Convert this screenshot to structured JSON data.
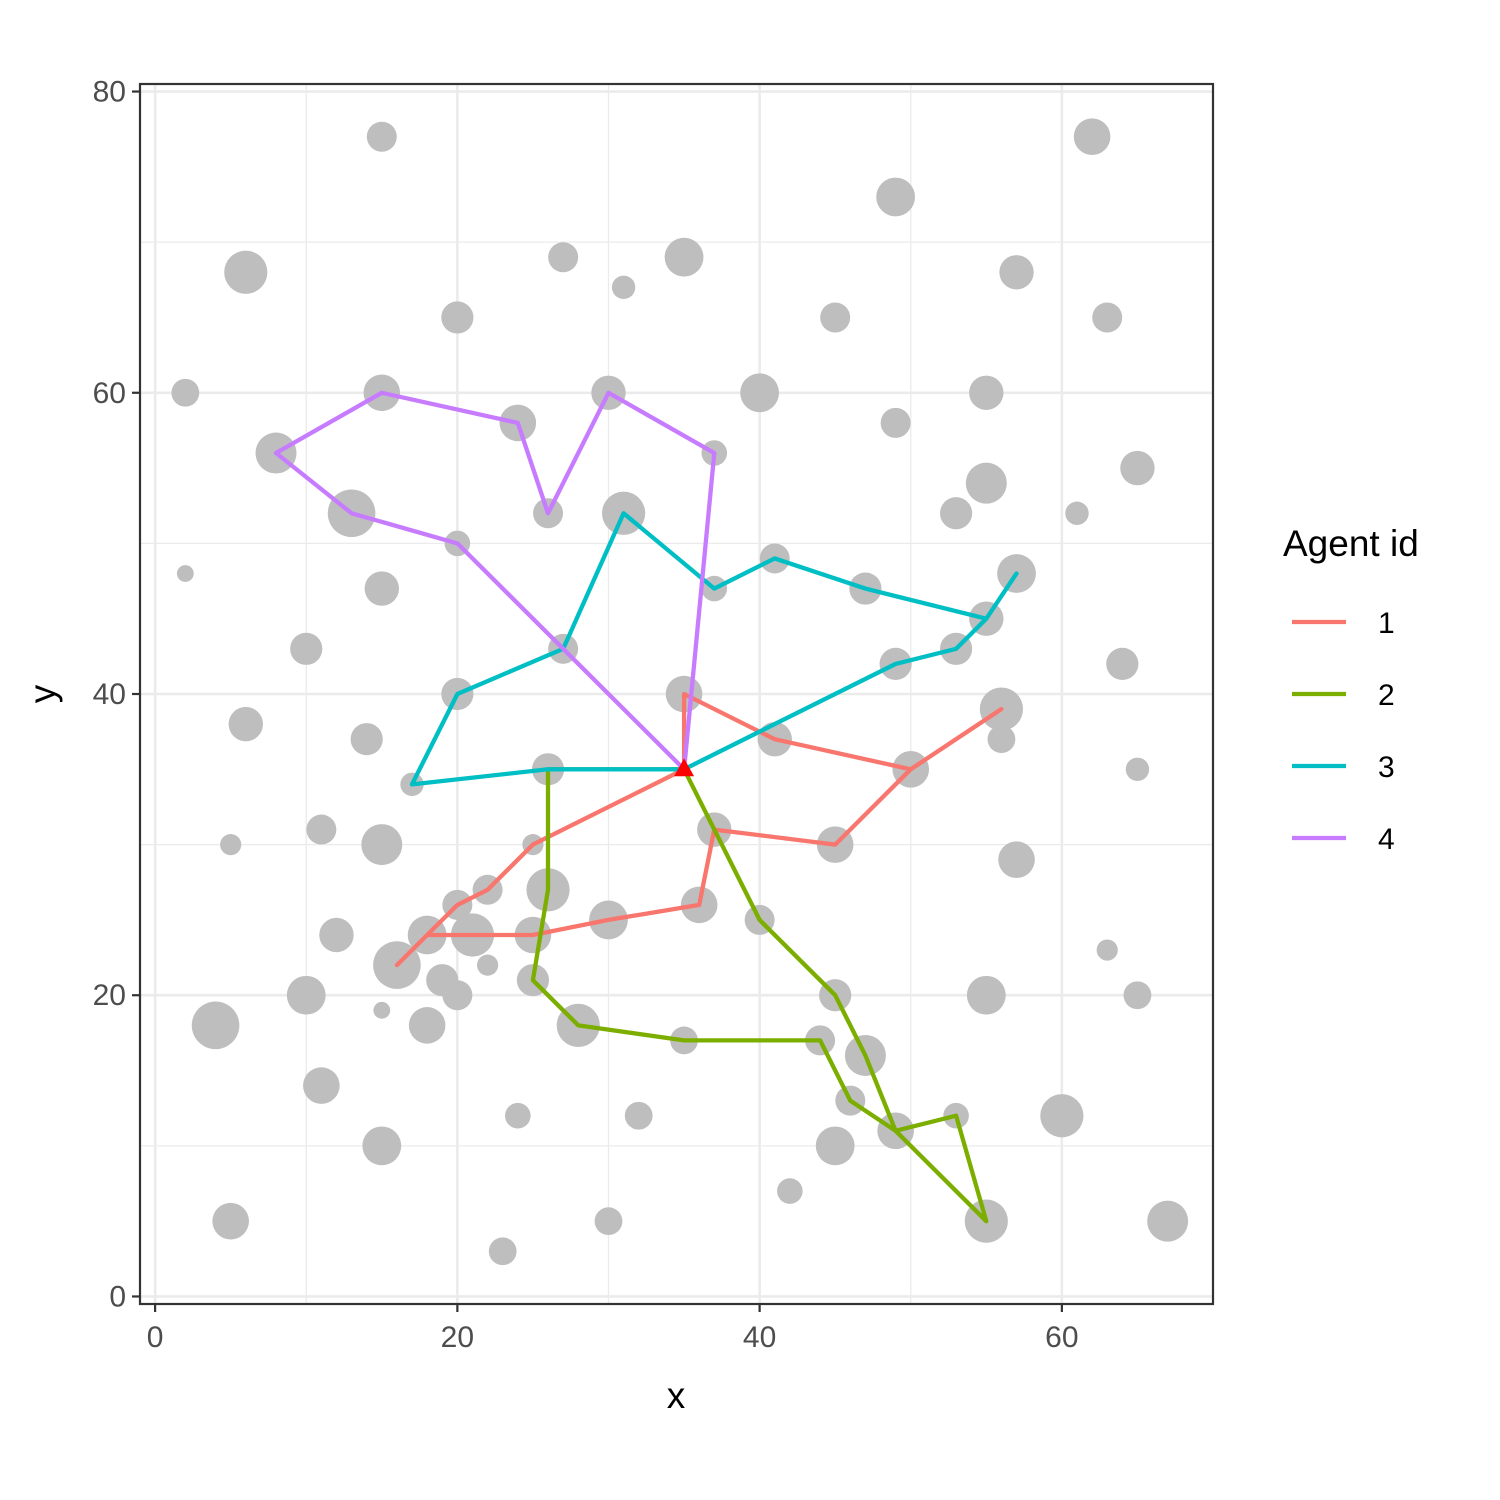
{
  "chart_data": {
    "type": "scatter",
    "xlabel": "x",
    "ylabel": "y",
    "xlim": [
      -1,
      70
    ],
    "ylim": [
      -0.5,
      80.5
    ],
    "x_ticks": [
      "0",
      "20",
      "40",
      "60"
    ],
    "y_ticks": [
      "0",
      "20",
      "40",
      "60",
      "80"
    ],
    "grid": true,
    "legend": {
      "title": "Agent id",
      "position": "right",
      "entries": [
        "1",
        "2",
        "3",
        "4"
      ]
    },
    "colors": {
      "1": "#F8766D",
      "2": "#7CAE00",
      "3": "#00BFC4",
      "4": "#C77CFF",
      "depot": "#FF0000",
      "points": "#BEBEBE"
    },
    "depot": {
      "x": 35,
      "y": 35
    },
    "points": [
      {
        "x": 15,
        "y": 77,
        "s": 1.0
      },
      {
        "x": 62,
        "y": 77,
        "s": 1.3
      },
      {
        "x": 49,
        "y": 73,
        "s": 1.4
      },
      {
        "x": 6,
        "y": 68,
        "s": 1.6
      },
      {
        "x": 27,
        "y": 69,
        "s": 1.0
      },
      {
        "x": 35,
        "y": 69,
        "s": 1.4
      },
      {
        "x": 31,
        "y": 67,
        "s": 0.7
      },
      {
        "x": 57,
        "y": 68,
        "s": 1.2
      },
      {
        "x": 20,
        "y": 65,
        "s": 1.1
      },
      {
        "x": 45,
        "y": 65,
        "s": 1.0
      },
      {
        "x": 63,
        "y": 65,
        "s": 1.0
      },
      {
        "x": 2,
        "y": 60,
        "s": 0.9
      },
      {
        "x": 15,
        "y": 60,
        "s": 1.3
      },
      {
        "x": 30,
        "y": 60,
        "s": 1.2
      },
      {
        "x": 40,
        "y": 60,
        "s": 1.4
      },
      {
        "x": 55,
        "y": 60,
        "s": 1.2
      },
      {
        "x": 24,
        "y": 58,
        "s": 1.3
      },
      {
        "x": 49,
        "y": 58,
        "s": 1.0
      },
      {
        "x": 8,
        "y": 56,
        "s": 1.5
      },
      {
        "x": 37,
        "y": 56,
        "s": 0.8
      },
      {
        "x": 65,
        "y": 55,
        "s": 1.2
      },
      {
        "x": 55,
        "y": 54,
        "s": 1.5
      },
      {
        "x": 13,
        "y": 52,
        "s": 1.8
      },
      {
        "x": 26,
        "y": 52,
        "s": 1.0
      },
      {
        "x": 31,
        "y": 52,
        "s": 1.6
      },
      {
        "x": 53,
        "y": 52,
        "s": 1.1
      },
      {
        "x": 61,
        "y": 52,
        "s": 0.7
      },
      {
        "x": 20,
        "y": 50,
        "s": 0.8
      },
      {
        "x": 41,
        "y": 49,
        "s": 1.0
      },
      {
        "x": 2,
        "y": 48,
        "s": 0.4
      },
      {
        "x": 57,
        "y": 48,
        "s": 1.4
      },
      {
        "x": 15,
        "y": 47,
        "s": 1.2
      },
      {
        "x": 37,
        "y": 47,
        "s": 0.8
      },
      {
        "x": 47,
        "y": 47,
        "s": 1.1
      },
      {
        "x": 55,
        "y": 45,
        "s": 1.2
      },
      {
        "x": 10,
        "y": 43,
        "s": 1.1
      },
      {
        "x": 27,
        "y": 43,
        "s": 1.0
      },
      {
        "x": 53,
        "y": 43,
        "s": 1.1
      },
      {
        "x": 49,
        "y": 42,
        "s": 1.1
      },
      {
        "x": 64,
        "y": 42,
        "s": 1.1
      },
      {
        "x": 20,
        "y": 40,
        "s": 1.1
      },
      {
        "x": 35,
        "y": 40,
        "s": 1.3
      },
      {
        "x": 56,
        "y": 39,
        "s": 1.6
      },
      {
        "x": 6,
        "y": 38,
        "s": 1.2
      },
      {
        "x": 14,
        "y": 37,
        "s": 1.1
      },
      {
        "x": 41,
        "y": 37,
        "s": 1.2
      },
      {
        "x": 56,
        "y": 37,
        "s": 0.9
      },
      {
        "x": 26,
        "y": 35,
        "s": 1.1
      },
      {
        "x": 50,
        "y": 35,
        "s": 1.3
      },
      {
        "x": 65,
        "y": 35,
        "s": 0.7
      },
      {
        "x": 17,
        "y": 34,
        "s": 0.7
      },
      {
        "x": 11,
        "y": 31,
        "s": 1.0
      },
      {
        "x": 37,
        "y": 31,
        "s": 1.2
      },
      {
        "x": 5,
        "y": 30,
        "s": 0.6
      },
      {
        "x": 15,
        "y": 30,
        "s": 1.5
      },
      {
        "x": 25,
        "y": 30,
        "s": 0.6
      },
      {
        "x": 45,
        "y": 30,
        "s": 1.3
      },
      {
        "x": 57,
        "y": 29,
        "s": 1.3
      },
      {
        "x": 22,
        "y": 27,
        "s": 1.0
      },
      {
        "x": 26,
        "y": 27,
        "s": 1.6
      },
      {
        "x": 20,
        "y": 26,
        "s": 1.0
      },
      {
        "x": 36,
        "y": 26,
        "s": 1.3
      },
      {
        "x": 30,
        "y": 25,
        "s": 1.4
      },
      {
        "x": 40,
        "y": 25,
        "s": 1.0
      },
      {
        "x": 12,
        "y": 24,
        "s": 1.2
      },
      {
        "x": 18,
        "y": 24,
        "s": 1.4
      },
      {
        "x": 21,
        "y": 24,
        "s": 1.6
      },
      {
        "x": 25,
        "y": 24,
        "s": 1.3
      },
      {
        "x": 63,
        "y": 23,
        "s": 0.6
      },
      {
        "x": 16,
        "y": 22,
        "s": 1.8
      },
      {
        "x": 22,
        "y": 22,
        "s": 0.6
      },
      {
        "x": 19,
        "y": 21,
        "s": 1.1
      },
      {
        "x": 25,
        "y": 21,
        "s": 1.1
      },
      {
        "x": 10,
        "y": 20,
        "s": 1.4
      },
      {
        "x": 20,
        "y": 20,
        "s": 1.0
      },
      {
        "x": 45,
        "y": 20,
        "s": 1.1
      },
      {
        "x": 55,
        "y": 20,
        "s": 1.4
      },
      {
        "x": 65,
        "y": 20,
        "s": 0.9
      },
      {
        "x": 15,
        "y": 19,
        "s": 0.4
      },
      {
        "x": 4,
        "y": 18,
        "s": 1.8
      },
      {
        "x": 18,
        "y": 18,
        "s": 1.3
      },
      {
        "x": 28,
        "y": 18,
        "s": 1.6
      },
      {
        "x": 35,
        "y": 17,
        "s": 0.9
      },
      {
        "x": 44,
        "y": 17,
        "s": 1.0
      },
      {
        "x": 47,
        "y": 16,
        "s": 1.5
      },
      {
        "x": 11,
        "y": 14,
        "s": 1.3
      },
      {
        "x": 46,
        "y": 13,
        "s": 1.0
      },
      {
        "x": 24,
        "y": 12,
        "s": 0.8
      },
      {
        "x": 32,
        "y": 12,
        "s": 0.9
      },
      {
        "x": 53,
        "y": 12,
        "s": 0.8
      },
      {
        "x": 60,
        "y": 12,
        "s": 1.6
      },
      {
        "x": 49,
        "y": 11,
        "s": 1.3
      },
      {
        "x": 15,
        "y": 10,
        "s": 1.4
      },
      {
        "x": 45,
        "y": 10,
        "s": 1.4
      },
      {
        "x": 42,
        "y": 7,
        "s": 0.8
      },
      {
        "x": 5,
        "y": 5,
        "s": 1.3
      },
      {
        "x": 30,
        "y": 5,
        "s": 0.9
      },
      {
        "x": 55,
        "y": 5,
        "s": 1.6
      },
      {
        "x": 67,
        "y": 5,
        "s": 1.5
      },
      {
        "x": 23,
        "y": 3,
        "s": 0.9
      }
    ],
    "series": [
      {
        "name": "1",
        "x": [
          35,
          35,
          41,
          50,
          56,
          50,
          45,
          37,
          36,
          30,
          25,
          18,
          16,
          18,
          20,
          22,
          25,
          35
        ],
        "y": [
          35,
          40,
          37,
          35,
          39,
          35,
          30,
          31,
          26,
          25,
          24,
          24,
          22,
          24,
          26,
          27,
          30,
          35
        ]
      },
      {
        "name": "2",
        "x": [
          35,
          40,
          45,
          47,
          49,
          53,
          55,
          49,
          46,
          44,
          35,
          28,
          25,
          26,
          26,
          26,
          35
        ],
        "y": [
          35,
          25,
          20,
          16,
          11,
          12,
          5,
          11,
          13,
          17,
          17,
          18,
          21,
          27,
          30,
          35,
          35
        ]
      },
      {
        "name": "3",
        "x": [
          35,
          41,
          49,
          53,
          55,
          57,
          55,
          47,
          41,
          37,
          31,
          27,
          20,
          17,
          26,
          35
        ],
        "y": [
          35,
          38,
          42,
          43,
          45,
          48,
          45,
          47,
          49,
          47,
          52,
          43,
          40,
          34,
          35,
          35
        ]
      },
      {
        "name": "4",
        "x": [
          35,
          37,
          30,
          26,
          24,
          15,
          8,
          13,
          20,
          27,
          35
        ],
        "y": [
          35,
          56,
          60,
          52,
          58,
          60,
          56,
          52,
          50,
          43,
          35
        ]
      }
    ]
  }
}
